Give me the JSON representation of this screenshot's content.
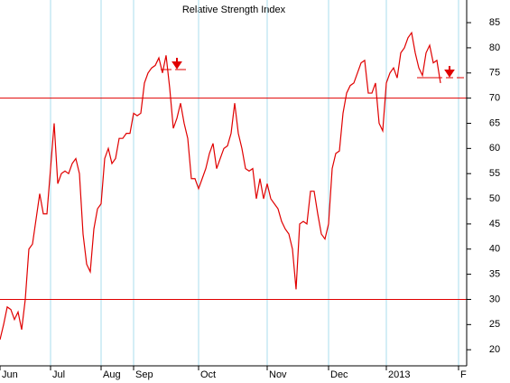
{
  "chart_data": {
    "type": "line",
    "title": "Relative Strength Index",
    "categories": [
      "Jun",
      null,
      null,
      null,
      null,
      null,
      null,
      null,
      null,
      null,
      null,
      null,
      null,
      null,
      "Jul",
      null,
      null,
      null,
      null,
      null,
      null,
      null,
      null,
      null,
      null,
      null,
      null,
      null,
      "Aug",
      null,
      null,
      null,
      null,
      null,
      null,
      null,
      null,
      "Sep",
      null,
      null,
      null,
      null,
      null,
      null,
      null,
      null,
      null,
      null,
      null,
      null,
      null,
      null,
      null,
      null,
      null,
      "Oct",
      null,
      null,
      null,
      null,
      null,
      null,
      null,
      null,
      null,
      null,
      null,
      null,
      null,
      null,
      null,
      null,
      null,
      null,
      "Nov",
      null,
      null,
      null,
      null,
      null,
      null,
      null,
      null,
      null,
      null,
      null,
      null,
      null,
      null,
      null,
      null,
      "Dec",
      null,
      null,
      null,
      null,
      null,
      null,
      null,
      null,
      null,
      null,
      null,
      null,
      null,
      null,
      null,
      "2013",
      null,
      null,
      null,
      null,
      null,
      null,
      null,
      null,
      null,
      null,
      null,
      null,
      null,
      null,
      null,
      null,
      null,
      null,
      null,
      "F"
    ],
    "values": [
      22,
      25,
      28.5,
      28,
      26,
      27.5,
      24,
      30,
      40,
      41,
      46,
      51,
      47,
      47,
      56,
      65,
      53,
      55,
      55.5,
      55,
      57,
      58,
      55,
      43,
      37,
      35.5,
      44,
      48,
      49,
      58,
      60,
      57,
      58,
      62,
      62,
      63,
      63,
      67,
      66.5,
      67,
      73,
      75,
      76,
      76.5,
      78,
      75,
      78.5,
      72,
      64,
      66,
      69,
      65,
      62,
      54,
      54,
      52,
      54,
      56,
      59,
      61,
      56,
      58,
      60,
      60.5,
      63,
      69,
      63,
      60,
      56,
      55.5,
      56,
      50,
      54,
      50,
      53,
      50,
      49,
      48,
      45.5,
      44,
      43,
      40,
      32,
      45,
      45.5,
      45,
      51.5,
      51.5,
      47,
      43,
      42,
      45,
      56,
      59,
      59.5,
      67,
      71,
      72.5,
      73,
      75,
      77,
      77.5,
      71,
      71,
      73,
      65,
      63.5,
      73,
      75,
      76,
      74,
      79,
      80,
      82,
      83,
      79,
      76,
      74.5,
      79,
      80.5,
      77,
      77.5,
      73,
      null,
      null,
      null,
      null,
      null
    ],
    "color": "#e00000",
    "hlines": [
      70,
      30
    ],
    "hline_color": "#e00000",
    "ylim": [
      16.8,
      89.5
    ],
    "yticks": [
      20,
      25,
      30,
      35,
      40,
      45,
      50,
      55,
      60,
      65,
      70,
      75,
      80,
      85
    ],
    "grid": true,
    "grid_color": "#a8dcee"
  }
}
